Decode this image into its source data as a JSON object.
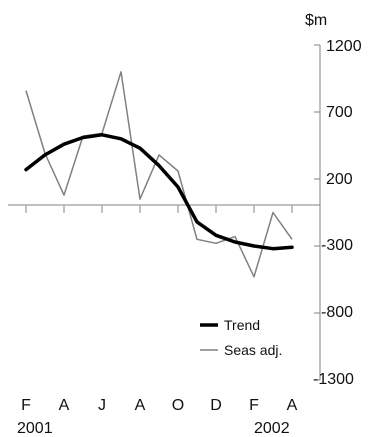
{
  "chart_data": {
    "type": "line",
    "unit_label": "$m",
    "x": [
      "Feb 2001",
      "Mar 2001",
      "Apr 2001",
      "May 2001",
      "Jun 2001",
      "Jul 2001",
      "Aug 2001",
      "Sep 2001",
      "Oct 2001",
      "Nov 2001",
      "Dec 2001",
      "Jan 2002",
      "Feb 2002",
      "Mar 2002",
      "Apr 2002"
    ],
    "x_tick_labels": [
      "F",
      "A",
      "J",
      "A",
      "O",
      "D",
      "F",
      "A"
    ],
    "x_tick_years": [
      "2001",
      "2002"
    ],
    "yticks": [
      "1200",
      "700",
      "200",
      "-300",
      "-800",
      "-1300"
    ],
    "ylim": [
      -1300,
      1200
    ],
    "grid": false,
    "legend_position": "bottom-right",
    "series": [
      {
        "name": "Trend",
        "color": "#000000",
        "values": [
          270,
          380,
          460,
          510,
          530,
          500,
          430,
          300,
          140,
          -120,
          -220,
          -270,
          -300,
          -320,
          -310
        ]
      },
      {
        "name": "Seas adj.",
        "color": "#808080",
        "values": [
          860,
          390,
          80,
          520,
          540,
          1000,
          50,
          380,
          260,
          -250,
          -280,
          -230,
          -530,
          -50,
          -250
        ]
      }
    ]
  }
}
